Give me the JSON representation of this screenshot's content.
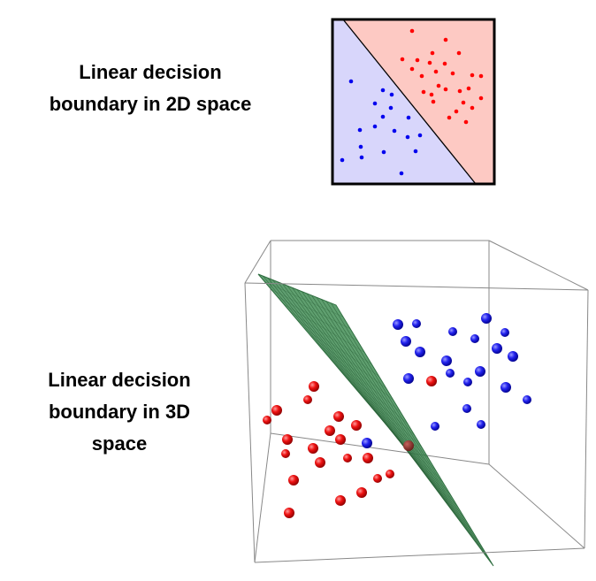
{
  "captions": {
    "two_d": [
      "Linear decision",
      "boundary in 2D space"
    ],
    "three_d": [
      "Linear decision",
      "boundary in 3D",
      "space"
    ]
  },
  "colors": {
    "red_region": "#fdc9c3",
    "blue_region": "#d8d6fb",
    "red_point": "#ff0000",
    "blue_point": "#0000ee",
    "plane": "#3f8a55",
    "box_edge": "#7a7a7a"
  }
}
